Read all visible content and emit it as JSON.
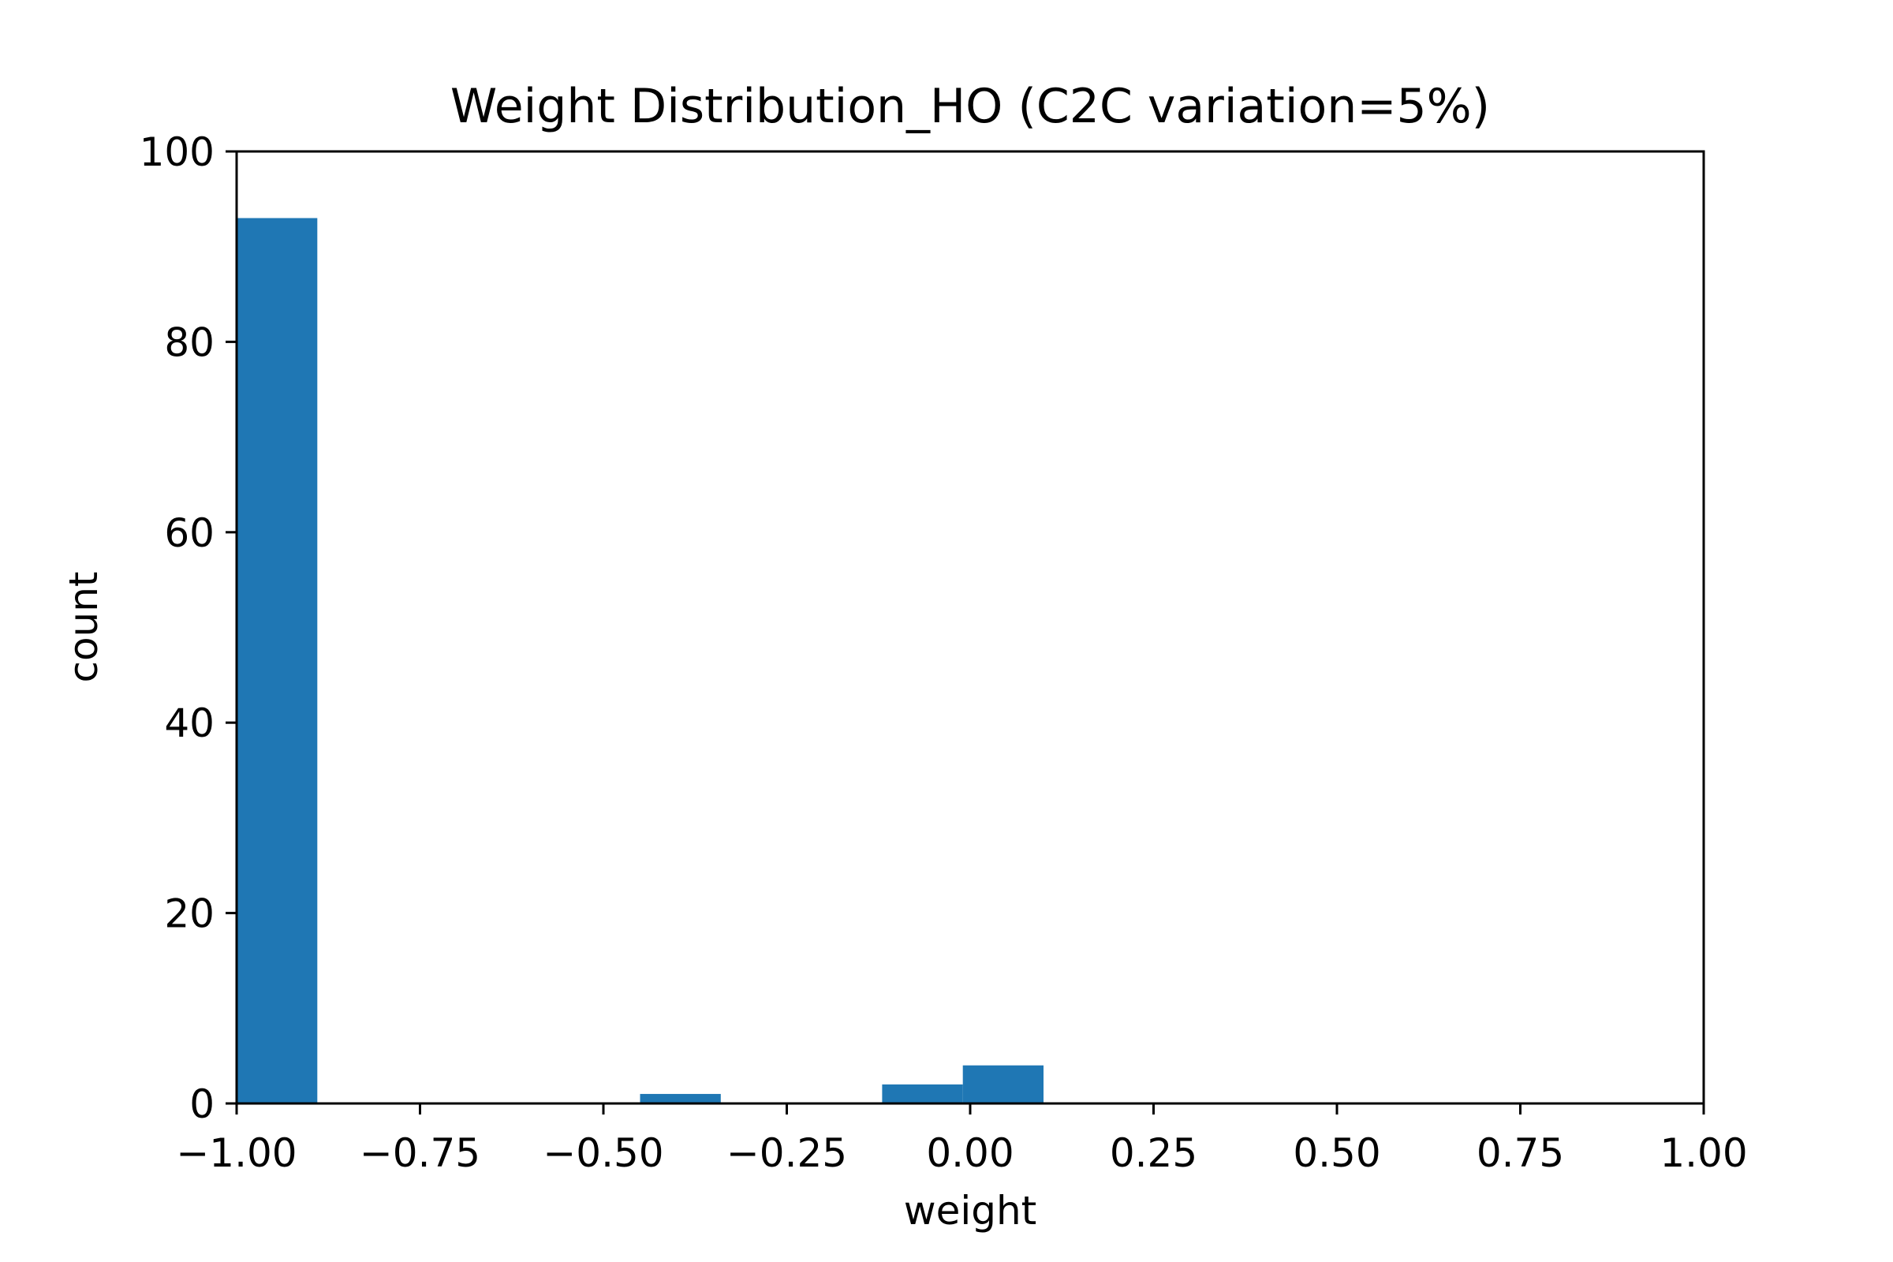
{
  "chart_data": {
    "type": "bar",
    "title": "Weight Distribution_HO (C2C variation=5%)",
    "xlabel": "weight",
    "ylabel": "count",
    "xlim": [
      -1.0,
      1.0
    ],
    "ylim": [
      0,
      100
    ],
    "x_ticks": [
      -1.0,
      -0.75,
      -0.5,
      -0.25,
      0.0,
      0.25,
      0.5,
      0.75,
      1.0
    ],
    "x_tick_labels": [
      "−1.00",
      "−0.75",
      "−0.50",
      "−0.25",
      "0.00",
      "0.25",
      "0.50",
      "0.75",
      "1.00"
    ],
    "y_ticks": [
      0,
      20,
      40,
      60,
      80,
      100
    ],
    "y_tick_labels": [
      "0",
      "20",
      "40",
      "60",
      "80",
      "100"
    ],
    "bins": [
      {
        "x0": -1.0,
        "x1": -0.89,
        "value": 93
      },
      {
        "x0": -0.45,
        "x1": -0.34,
        "value": 1
      },
      {
        "x0": -0.12,
        "x1": -0.01,
        "value": 2
      },
      {
        "x0": -0.01,
        "x1": 0.1,
        "value": 4
      }
    ],
    "bar_color": "#1f77b4",
    "grid": false,
    "legend": "none"
  }
}
